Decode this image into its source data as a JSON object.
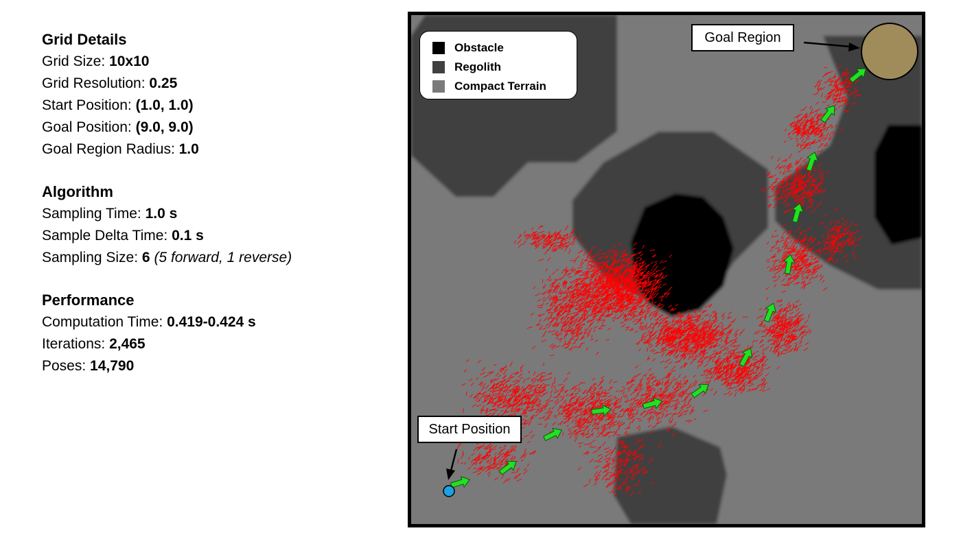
{
  "grid_details": {
    "title": "Grid Details",
    "grid_size": {
      "label": "Grid Size: ",
      "value": "10x10"
    },
    "grid_resolution": {
      "label": "Grid Resolution: ",
      "value": "0.25"
    },
    "start_position": {
      "label": "Start Position: ",
      "value": "(1.0, 1.0)"
    },
    "goal_position": {
      "label": "Goal Position: ",
      "value": "(9.0, 9.0)"
    },
    "goal_region_radius": {
      "label": "Goal Region Radius: ",
      "value": "1.0"
    }
  },
  "algorithm": {
    "title": "Algorithm",
    "sampling_time": {
      "label": "Sampling Time: ",
      "value": "1.0 s"
    },
    "sample_delta_time": {
      "label": "Sample Delta Time: ",
      "value": "0.1 s"
    },
    "sampling_size": {
      "label": "Sampling Size: ",
      "value": "6",
      "note": "(5 forward, 1 reverse)"
    }
  },
  "performance": {
    "title": "Performance",
    "computation_time": {
      "label": "Computation Time: ",
      "value": "0.419-0.424 s"
    },
    "iterations": {
      "label": "Iterations: ",
      "value": "2,465"
    },
    "poses": {
      "label": "Poses: ",
      "value": "14,790"
    }
  },
  "legend": {
    "obstacle": "Obstacle",
    "regolith": "Regolith",
    "compact_terrain": "Compact Terrain"
  },
  "callouts": {
    "goal_region": "Goal Region",
    "start_position": "Start Position"
  },
  "colors": {
    "obstacle": "#000000",
    "regolith": "#404040",
    "compact_terrain": "#7a7a7a",
    "sample_poses": "#ff0000",
    "path_arrows": "#22e022",
    "goal_region": "#a08c5a",
    "start_marker": "#1fa0e0"
  }
}
